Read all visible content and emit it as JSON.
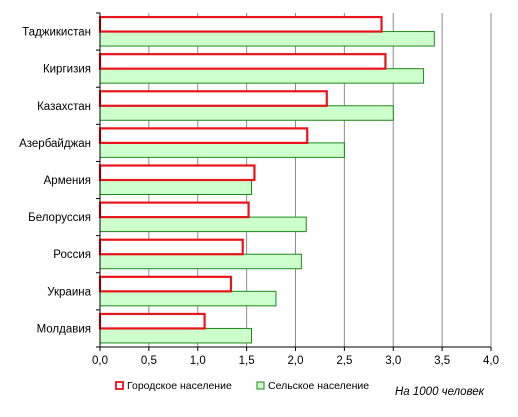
{
  "chart_data": {
    "type": "bar",
    "orientation": "horizontal",
    "categories": [
      "Таджикистан",
      "Киргизия",
      "Казахстан",
      "Азербайджан",
      "Армения",
      "Белоруссия",
      "Россия",
      "Украина",
      "Молдавия"
    ],
    "series": [
      {
        "name": "Городское население",
        "values": [
          2.88,
          2.92,
          2.32,
          2.12,
          1.58,
          1.52,
          1.46,
          1.34,
          1.07
        ],
        "color": "#e8141b",
        "fill": "#ffffff"
      },
      {
        "name": "Сельское население",
        "values": [
          3.42,
          3.31,
          3.0,
          2.5,
          1.55,
          2.11,
          2.06,
          1.8,
          1.55
        ],
        "color": "#1c8a1c",
        "fill": "#ccffcc"
      }
    ],
    "xlim": [
      0,
      4.0
    ],
    "xticks": [
      "0,0",
      "0,5",
      "1,0",
      "1,5",
      "2,0",
      "2,5",
      "3,0",
      "3,5",
      "4,0"
    ],
    "xlabel": "",
    "ylabel": "",
    "grid": true,
    "legend_position": "bottom",
    "note": "На 1000 человек"
  }
}
